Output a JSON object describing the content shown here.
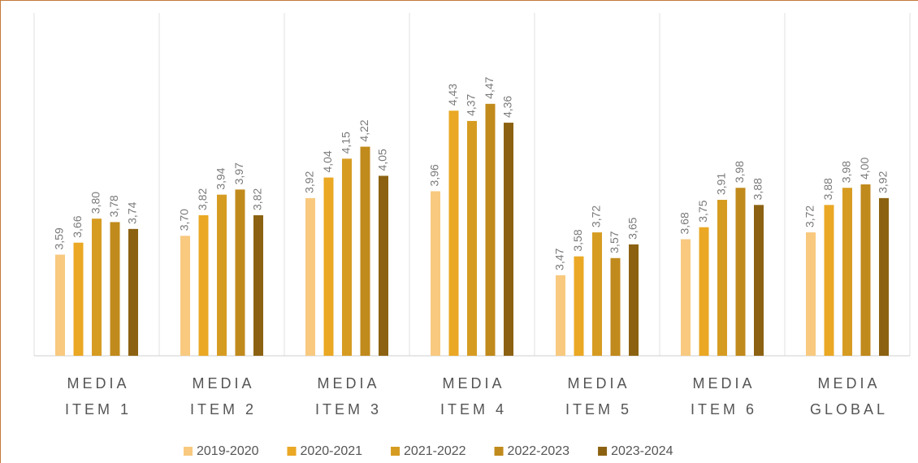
{
  "chart_data": {
    "type": "bar",
    "categories": [
      [
        "MEDIA",
        "ITEM 1"
      ],
      [
        "MEDIA",
        "ITEM 2"
      ],
      [
        "MEDIA",
        "ITEM 3"
      ],
      [
        "MEDIA",
        "ITEM 4"
      ],
      [
        "MEDIA",
        "ITEM 5"
      ],
      [
        "MEDIA",
        "ITEM 6"
      ],
      [
        "MEDIA",
        "GLOBAL"
      ]
    ],
    "series": [
      {
        "name": "2019-2020",
        "color": "#f8c97f",
        "values": [
          3.59,
          3.7,
          3.92,
          3.96,
          3.47,
          3.68,
          3.72
        ],
        "value_labels": [
          "3,59",
          "3,70",
          "3,92",
          "3,96",
          "3,47",
          "3,68",
          "3,72"
        ]
      },
      {
        "name": "2020-2021",
        "color": "#eaa824",
        "values": [
          3.66,
          3.82,
          4.04,
          4.43,
          3.58,
          3.75,
          3.88
        ],
        "value_labels": [
          "3,66",
          "3,82",
          "4,04",
          "4,43",
          "3,58",
          "3,75",
          "3,88"
        ]
      },
      {
        "name": "2021-2022",
        "color": "#d69c22",
        "values": [
          3.8,
          3.94,
          4.15,
          4.37,
          3.72,
          3.91,
          3.98
        ],
        "value_labels": [
          "3,80",
          "3,94",
          "4,15",
          "4,37",
          "3,72",
          "3,91",
          "3,98"
        ]
      },
      {
        "name": "2022-2023",
        "color": "#c18a1c",
        "values": [
          3.78,
          3.97,
          4.22,
          4.47,
          3.57,
          3.98,
          4.0
        ],
        "value_labels": [
          "3,78",
          "3,97",
          "4,22",
          "4,47",
          "3,57",
          "3,98",
          "4,00"
        ]
      },
      {
        "name": "2023-2024",
        "color": "#8c6212",
        "values": [
          3.74,
          3.82,
          4.05,
          4.36,
          3.65,
          3.88,
          3.92
        ],
        "value_labels": [
          "3,74",
          "3,82",
          "4,05",
          "4,36",
          "3,65",
          "3,88",
          "3,92"
        ]
      }
    ],
    "ylim": [
      3,
      5
    ],
    "grid": true,
    "legend": "bottom"
  }
}
